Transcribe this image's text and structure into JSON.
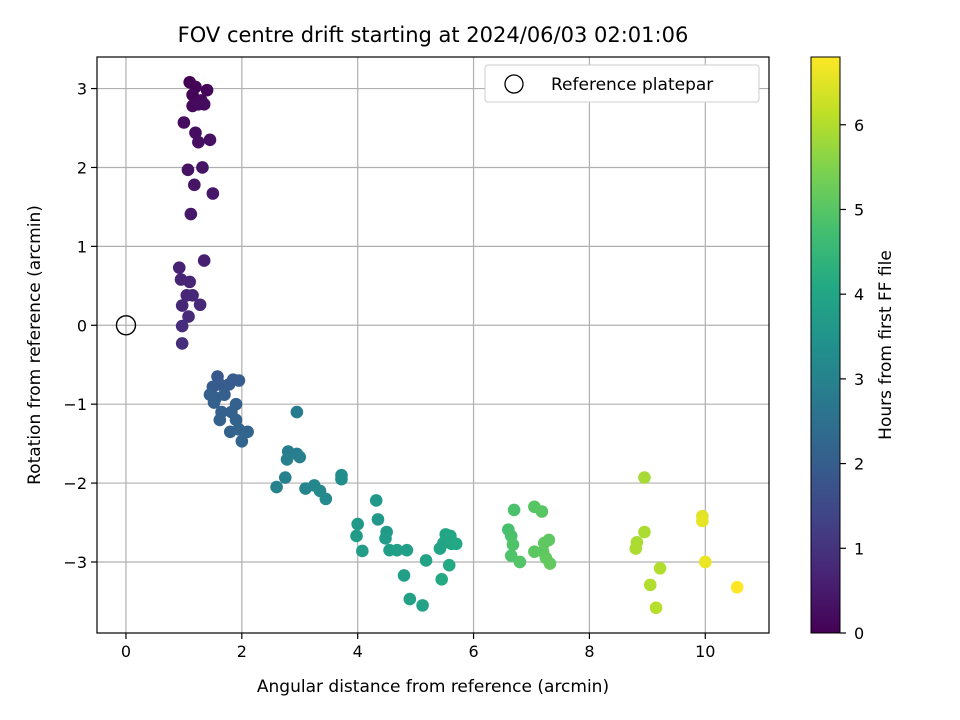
{
  "chart_data": {
    "type": "scatter",
    "title": "FOV centre drift starting at 2024/06/03 02:01:06",
    "xlabel": "Angular distance from reference (arcmin)",
    "ylabel": "Rotation from reference (arcmin)",
    "xlim": [
      -0.5,
      11.1
    ],
    "ylim": [
      -3.9,
      3.4
    ],
    "xticks": [
      0,
      2,
      4,
      6,
      8,
      10
    ],
    "yticks": [
      -3,
      -2,
      -1,
      0,
      1,
      2,
      3
    ],
    "grid": true,
    "legend": {
      "position": "top-right",
      "entries": [
        "Reference platepar"
      ]
    },
    "reference_point": {
      "x": 0,
      "y": 0
    },
    "colorbar": {
      "label": "Hours from first FF file",
      "range": [
        0,
        6.8
      ],
      "ticks": [
        0,
        1,
        2,
        3,
        4,
        5,
        6
      ],
      "colormap": "viridis"
    },
    "points": [
      {
        "x": 1.1,
        "y": 3.08,
        "c": 0.0
      },
      {
        "x": 1.2,
        "y": 3.02,
        "c": 0.05
      },
      {
        "x": 1.15,
        "y": 2.92,
        "c": 0.08
      },
      {
        "x": 1.4,
        "y": 2.98,
        "c": 0.1
      },
      {
        "x": 1.3,
        "y": 2.85,
        "c": 0.12
      },
      {
        "x": 1.15,
        "y": 2.78,
        "c": 0.15
      },
      {
        "x": 1.25,
        "y": 2.8,
        "c": 0.18
      },
      {
        "x": 1.35,
        "y": 2.8,
        "c": 0.2
      },
      {
        "x": 1.0,
        "y": 2.57,
        "c": 0.22
      },
      {
        "x": 1.2,
        "y": 2.44,
        "c": 0.25
      },
      {
        "x": 1.25,
        "y": 2.32,
        "c": 0.28
      },
      {
        "x": 1.45,
        "y": 2.35,
        "c": 0.3
      },
      {
        "x": 1.07,
        "y": 1.97,
        "c": 0.33
      },
      {
        "x": 1.32,
        "y": 2.0,
        "c": 0.36
      },
      {
        "x": 1.18,
        "y": 1.78,
        "c": 0.38
      },
      {
        "x": 1.5,
        "y": 1.67,
        "c": 0.42
      },
      {
        "x": 1.12,
        "y": 1.41,
        "c": 0.45
      },
      {
        "x": 1.35,
        "y": 0.82,
        "c": 0.6
      },
      {
        "x": 0.92,
        "y": 0.73,
        "c": 0.65
      },
      {
        "x": 0.95,
        "y": 0.58,
        "c": 0.68
      },
      {
        "x": 1.1,
        "y": 0.55,
        "c": 0.7
      },
      {
        "x": 1.05,
        "y": 0.38,
        "c": 0.72
      },
      {
        "x": 1.15,
        "y": 0.38,
        "c": 0.74
      },
      {
        "x": 0.97,
        "y": 0.25,
        "c": 0.76
      },
      {
        "x": 1.28,
        "y": 0.26,
        "c": 0.78
      },
      {
        "x": 1.08,
        "y": 0.11,
        "c": 0.8
      },
      {
        "x": 0.97,
        "y": -0.01,
        "c": 0.85
      },
      {
        "x": 0.97,
        "y": -0.23,
        "c": 0.9
      },
      {
        "x": 1.58,
        "y": -0.65,
        "c": 1.9
      },
      {
        "x": 1.62,
        "y": -0.75,
        "c": 1.95
      },
      {
        "x": 1.5,
        "y": -0.78,
        "c": 1.95
      },
      {
        "x": 1.85,
        "y": -0.69,
        "c": 2.0
      },
      {
        "x": 1.95,
        "y": -0.7,
        "c": 2.0
      },
      {
        "x": 1.78,
        "y": -0.75,
        "c": 2.0
      },
      {
        "x": 1.45,
        "y": -0.88,
        "c": 2.05
      },
      {
        "x": 1.55,
        "y": -0.92,
        "c": 2.05
      },
      {
        "x": 1.7,
        "y": -0.88,
        "c": 2.05
      },
      {
        "x": 1.52,
        "y": -0.98,
        "c": 2.08
      },
      {
        "x": 1.9,
        "y": -1.0,
        "c": 2.1
      },
      {
        "x": 1.65,
        "y": -1.1,
        "c": 2.1
      },
      {
        "x": 1.82,
        "y": -1.1,
        "c": 2.12
      },
      {
        "x": 1.62,
        "y": -1.2,
        "c": 2.12
      },
      {
        "x": 1.9,
        "y": -1.2,
        "c": 2.15
      },
      {
        "x": 1.8,
        "y": -1.35,
        "c": 2.15
      },
      {
        "x": 1.95,
        "y": -1.32,
        "c": 2.18
      },
      {
        "x": 2.1,
        "y": -1.35,
        "c": 2.18
      },
      {
        "x": 2.0,
        "y": -1.47,
        "c": 2.2
      },
      {
        "x": 2.95,
        "y": -1.1,
        "c": 2.8
      },
      {
        "x": 2.8,
        "y": -1.6,
        "c": 2.85
      },
      {
        "x": 2.95,
        "y": -1.63,
        "c": 2.85
      },
      {
        "x": 2.78,
        "y": -1.7,
        "c": 2.9
      },
      {
        "x": 3.0,
        "y": -1.67,
        "c": 2.9
      },
      {
        "x": 2.75,
        "y": -1.93,
        "c": 2.95
      },
      {
        "x": 2.6,
        "y": -2.05,
        "c": 3.0
      },
      {
        "x": 3.1,
        "y": -2.07,
        "c": 3.05
      },
      {
        "x": 3.25,
        "y": -2.03,
        "c": 3.1
      },
      {
        "x": 3.35,
        "y": -2.1,
        "c": 3.15
      },
      {
        "x": 3.45,
        "y": -2.2,
        "c": 3.2
      },
      {
        "x": 3.72,
        "y": -1.9,
        "c": 3.3
      },
      {
        "x": 3.72,
        "y": -1.95,
        "c": 3.32
      },
      {
        "x": 4.32,
        "y": -2.22,
        "c": 3.6
      },
      {
        "x": 4.35,
        "y": -2.46,
        "c": 3.62
      },
      {
        "x": 4.0,
        "y": -2.52,
        "c": 3.65
      },
      {
        "x": 4.5,
        "y": -2.62,
        "c": 3.68
      },
      {
        "x": 3.98,
        "y": -2.67,
        "c": 3.7
      },
      {
        "x": 4.48,
        "y": -2.7,
        "c": 3.72
      },
      {
        "x": 4.08,
        "y": -2.86,
        "c": 3.75
      },
      {
        "x": 4.55,
        "y": -2.85,
        "c": 3.78
      },
      {
        "x": 4.68,
        "y": -2.85,
        "c": 3.8
      },
      {
        "x": 4.85,
        "y": -2.85,
        "c": 3.82
      },
      {
        "x": 4.8,
        "y": -3.17,
        "c": 3.85
      },
      {
        "x": 4.9,
        "y": -3.47,
        "c": 3.88
      },
      {
        "x": 5.12,
        "y": -3.55,
        "c": 3.9
      },
      {
        "x": 5.18,
        "y": -2.98,
        "c": 3.92
      },
      {
        "x": 5.42,
        "y": -2.83,
        "c": 3.95
      },
      {
        "x": 5.48,
        "y": -2.76,
        "c": 3.97
      },
      {
        "x": 5.52,
        "y": -2.65,
        "c": 4.0
      },
      {
        "x": 5.6,
        "y": -2.67,
        "c": 4.02
      },
      {
        "x": 5.62,
        "y": -2.77,
        "c": 4.05
      },
      {
        "x": 5.7,
        "y": -2.77,
        "c": 4.07
      },
      {
        "x": 5.58,
        "y": -3.04,
        "c": 4.1
      },
      {
        "x": 5.45,
        "y": -3.22,
        "c": 4.12
      },
      {
        "x": 6.6,
        "y": -2.59,
        "c": 4.8
      },
      {
        "x": 6.7,
        "y": -2.34,
        "c": 4.85
      },
      {
        "x": 6.65,
        "y": -2.67,
        "c": 4.85
      },
      {
        "x": 6.68,
        "y": -2.78,
        "c": 4.9
      },
      {
        "x": 6.65,
        "y": -2.92,
        "c": 4.9
      },
      {
        "x": 6.8,
        "y": -3.0,
        "c": 4.95
      },
      {
        "x": 7.05,
        "y": -2.3,
        "c": 5.0
      },
      {
        "x": 7.18,
        "y": -2.36,
        "c": 5.02
      },
      {
        "x": 7.05,
        "y": -2.87,
        "c": 5.05
      },
      {
        "x": 7.2,
        "y": -2.87,
        "c": 5.07
      },
      {
        "x": 7.3,
        "y": -2.72,
        "c": 5.1
      },
      {
        "x": 7.22,
        "y": -2.76,
        "c": 5.1
      },
      {
        "x": 7.25,
        "y": -2.95,
        "c": 5.12
      },
      {
        "x": 7.32,
        "y": -3.02,
        "c": 5.15
      },
      {
        "x": 8.95,
        "y": -1.93,
        "c": 5.9
      },
      {
        "x": 8.82,
        "y": -2.75,
        "c": 5.92
      },
      {
        "x": 8.8,
        "y": -2.83,
        "c": 5.95
      },
      {
        "x": 8.95,
        "y": -2.62,
        "c": 5.95
      },
      {
        "x": 9.22,
        "y": -3.08,
        "c": 6.0
      },
      {
        "x": 9.05,
        "y": -3.29,
        "c": 6.0
      },
      {
        "x": 9.15,
        "y": -3.58,
        "c": 6.05
      },
      {
        "x": 9.95,
        "y": -2.42,
        "c": 6.5
      },
      {
        "x": 9.95,
        "y": -2.48,
        "c": 6.55
      },
      {
        "x": 10.0,
        "y": -3.0,
        "c": 6.6
      },
      {
        "x": 10.55,
        "y": -3.32,
        "c": 6.8
      }
    ]
  }
}
